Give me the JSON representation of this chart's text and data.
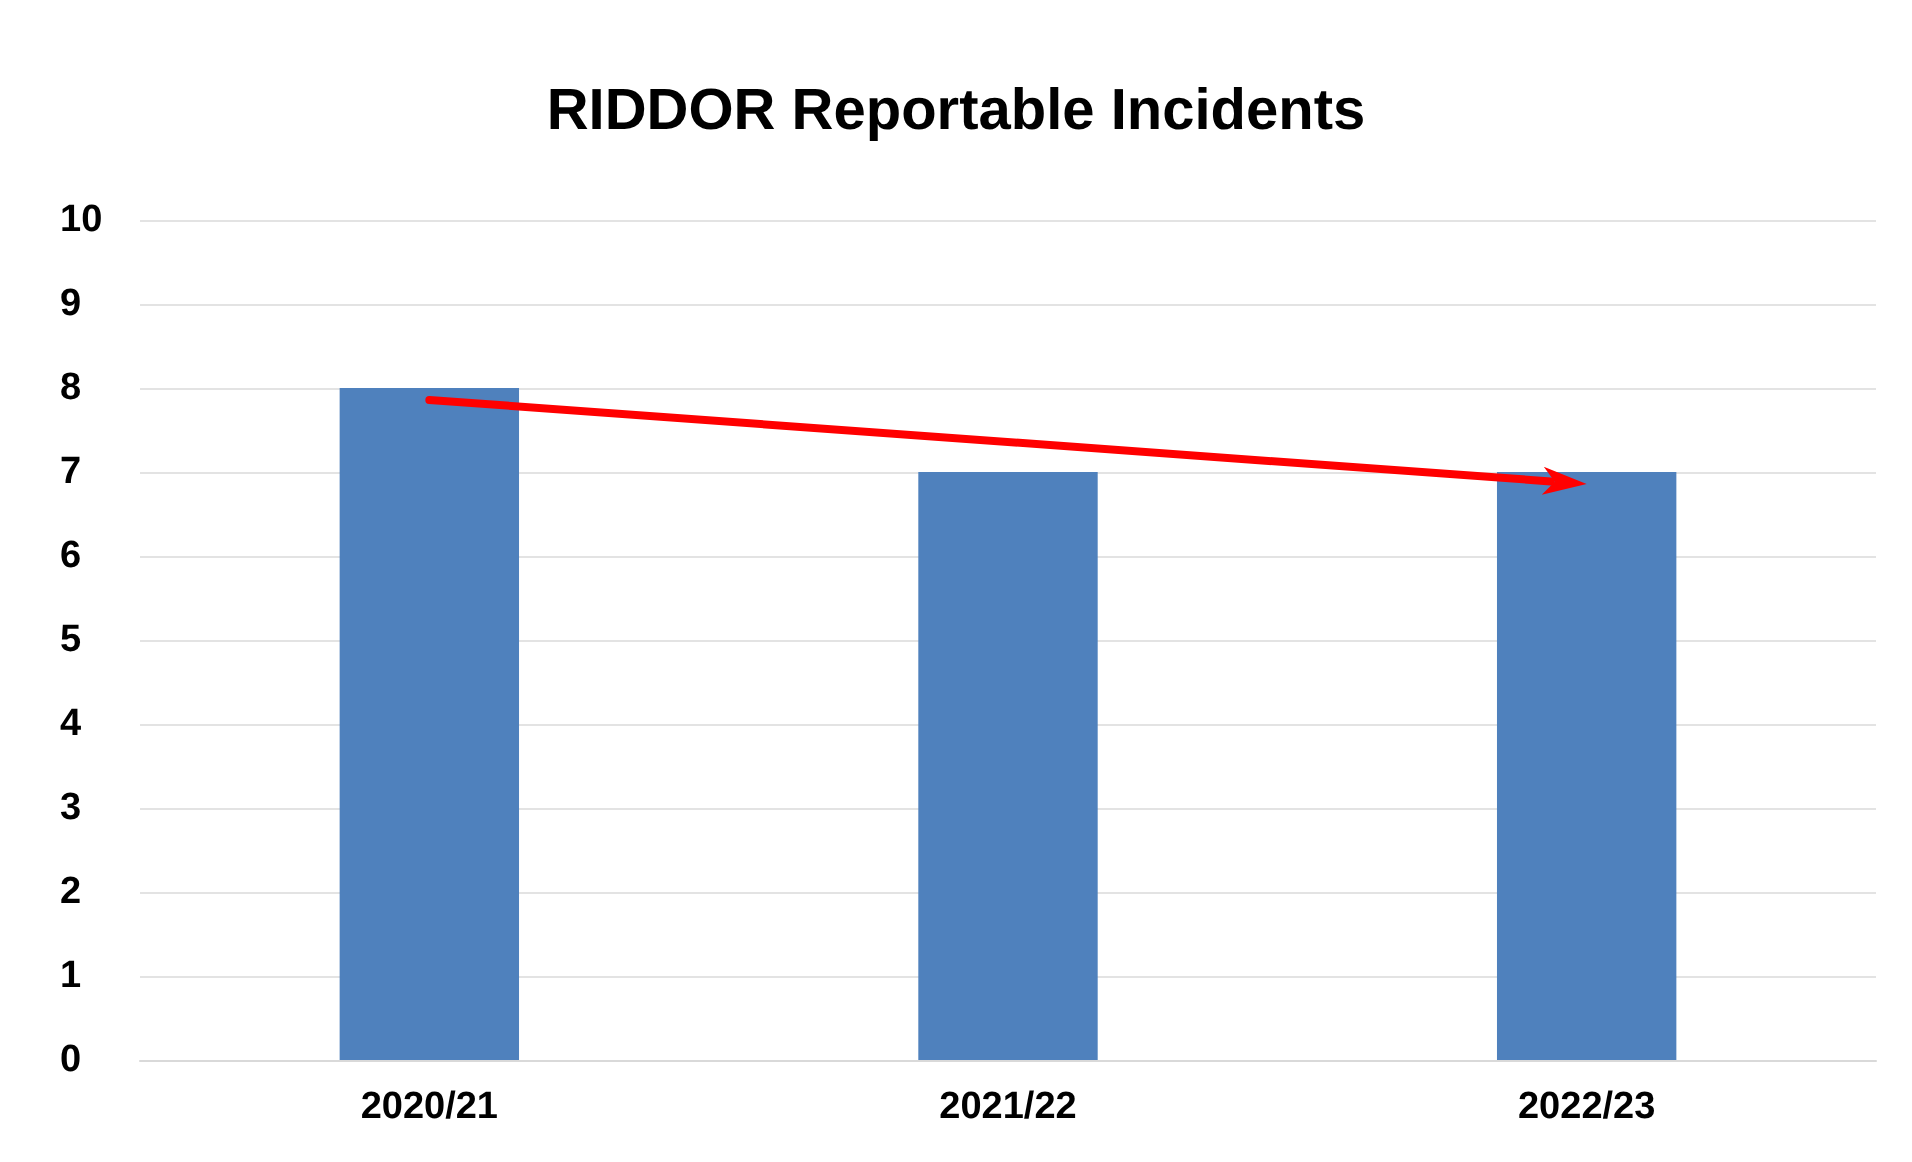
{
  "chart_data": {
    "type": "bar",
    "title": "RIDDOR Reportable Incidents",
    "categories": [
      "2020/21",
      "2021/22",
      "2022/23"
    ],
    "values": [
      8,
      7,
      7
    ],
    "color": "#4f81bd",
    "ylim": [
      0,
      10
    ],
    "yticks": [
      0,
      1,
      2,
      3,
      4,
      5,
      6,
      7,
      8,
      9,
      10
    ],
    "grid": "y"
  }
}
